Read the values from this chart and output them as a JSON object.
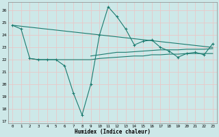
{
  "title": "",
  "xlabel": "Humidex (Indice chaleur)",
  "ylabel": "",
  "background_color": "#cde8e8",
  "grid_color": "#e8c8c8",
  "line_color": "#1a7a6e",
  "x_ticks": [
    0,
    1,
    2,
    3,
    4,
    5,
    6,
    7,
    8,
    9,
    10,
    11,
    12,
    13,
    14,
    15,
    16,
    17,
    18,
    19,
    20,
    21,
    22,
    23
  ],
  "y_ticks": [
    17,
    18,
    19,
    20,
    21,
    22,
    23,
    24,
    25,
    26
  ],
  "xlim": [
    -0.5,
    23.5
  ],
  "ylim": [
    16.8,
    26.7
  ],
  "series": [
    {
      "x": [
        0,
        1,
        2,
        3,
        4,
        5,
        6,
        7,
        8,
        9,
        10,
        11,
        12,
        13,
        14,
        15,
        16,
        17,
        18,
        19,
        20,
        21,
        22,
        23
      ],
      "y": [
        24.8,
        24.5,
        22.1,
        22.0,
        22.0,
        22.0,
        21.5,
        19.3,
        17.5,
        20.0,
        24.0,
        26.3,
        25.5,
        24.5,
        23.2,
        23.5,
        23.6,
        23.0,
        22.7,
        22.2,
        22.5,
        22.6,
        22.4,
        23.3
      ],
      "has_markers": true
    },
    {
      "x": [
        2,
        3,
        4,
        5,
        6,
        7,
        8,
        9,
        10,
        11,
        12,
        13,
        14,
        15,
        16,
        17,
        18,
        19,
        20,
        21,
        22,
        23
      ],
      "y": [
        22.1,
        22.0,
        22.0,
        22.0,
        22.0,
        22.0,
        22.0,
        22.0,
        22.1,
        22.15,
        22.2,
        22.25,
        22.3,
        22.3,
        22.4,
        22.4,
        22.45,
        22.45,
        22.5,
        22.5,
        22.5,
        22.5
      ],
      "has_markers": false
    },
    {
      "x": [
        0,
        23
      ],
      "y": [
        24.8,
        23.0
      ],
      "has_markers": false
    },
    {
      "x": [
        9,
        10,
        11,
        12,
        13,
        14,
        15,
        16,
        17,
        18,
        19,
        20,
        21,
        22,
        23
      ],
      "y": [
        22.3,
        22.4,
        22.5,
        22.6,
        22.6,
        22.65,
        22.7,
        22.75,
        22.8,
        22.8,
        22.8,
        22.85,
        22.85,
        22.85,
        22.9
      ],
      "has_markers": false
    }
  ]
}
